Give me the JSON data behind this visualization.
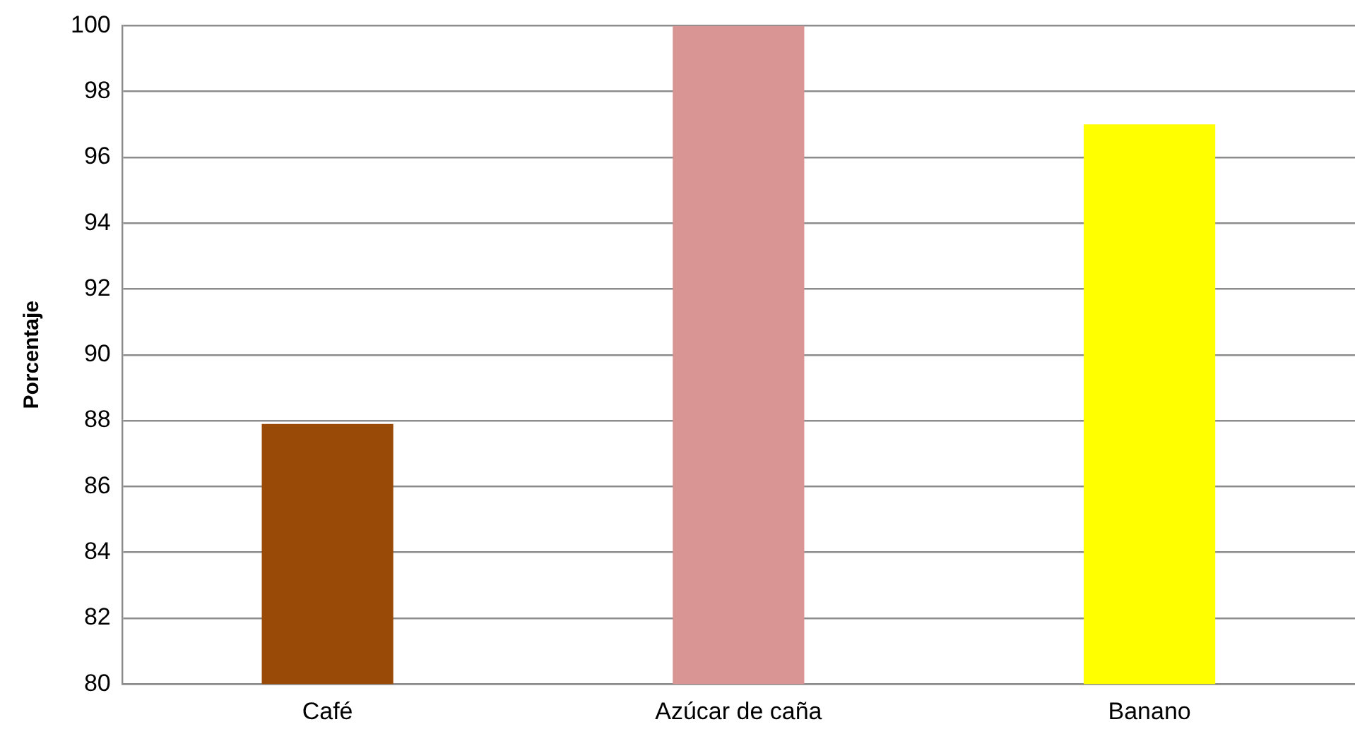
{
  "chart_data": {
    "type": "bar",
    "ylabel": "Porcentaje",
    "categories": [
      "Café",
      "Azúcar de caña",
      "Banano"
    ],
    "values": [
      87.9,
      100,
      97
    ],
    "colors": [
      "#994a07",
      "#d99594",
      "#ffff00"
    ],
    "ylim": [
      80,
      100
    ],
    "yticks": [
      80,
      82,
      84,
      86,
      88,
      90,
      92,
      94,
      96,
      98,
      100
    ],
    "grid": "y",
    "legend": false
  }
}
